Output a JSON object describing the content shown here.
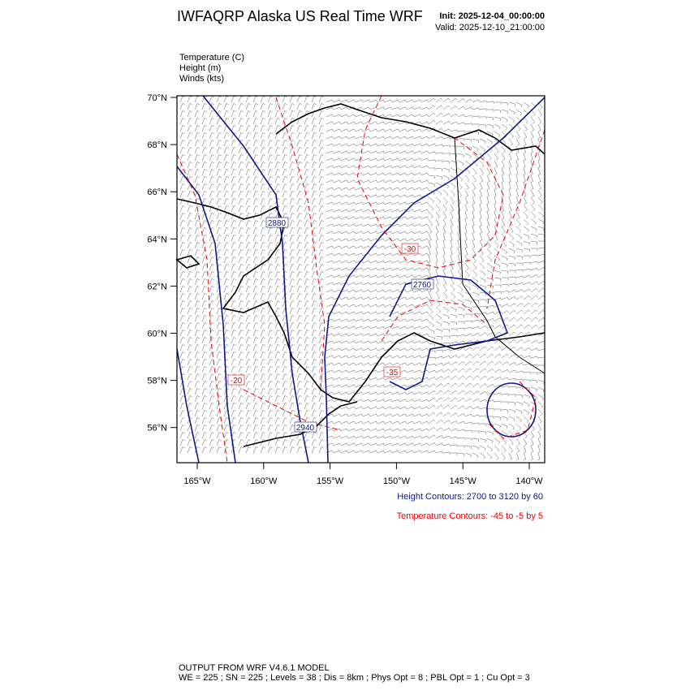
{
  "header": {
    "title": "IWFAQRP Alaska US Real Time WRF",
    "init": "Init: 2025-12-04_00:00:00",
    "valid": "Valid: 2025-12-10_21:00:00"
  },
  "fields": [
    "Temperature   (C)",
    "Height   (m)",
    "Winds   (kts)"
  ],
  "lat_labels": [
    "70°N",
    "68°N",
    "66°N",
    "64°N",
    "62°N",
    "60°N",
    "58°N",
    "56°N"
  ],
  "lon_labels": [
    "165°W",
    "160°W",
    "155°W",
    "150°W",
    "145°W",
    "140°W"
  ],
  "contour_labels": [
    "2880",
    "-30",
    "2760",
    "-35",
    "-20",
    "2940"
  ],
  "contour_info": [
    "Height Contours: 2700 to 3120 by 60",
    "Temperature Contours: -45 to -5 by 5"
  ],
  "footer": [
    "OUTPUT FROM WRF V4.6.1 MODEL",
    "WE = 225 ; SN = 225 ; Levels = 38 ; Dis = 8km ; Phys Opt = 8 ; PBL Opt = 1 ; Cu Opt = 3"
  ]
}
